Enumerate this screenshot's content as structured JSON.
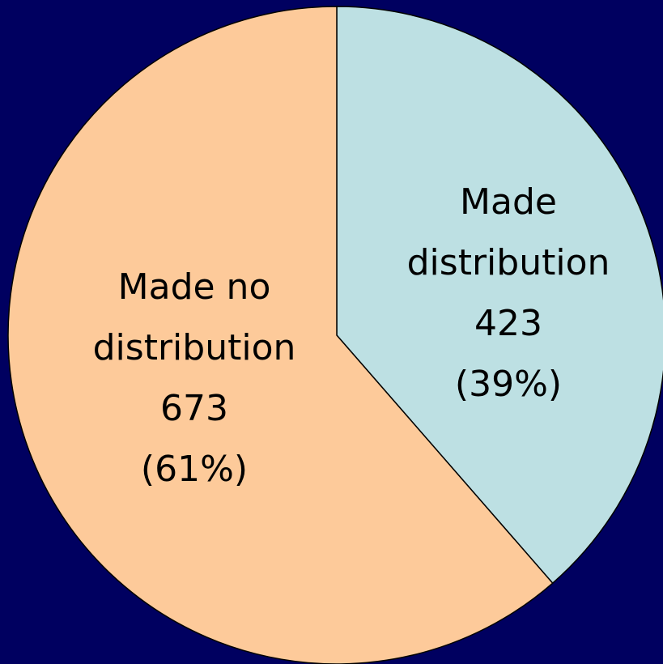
{
  "chart_data": {
    "type": "pie",
    "categories": [
      "Made distribution",
      "Made no distribution"
    ],
    "values": [
      423,
      673
    ],
    "share_labels": [
      "(39%)",
      "(61%)"
    ],
    "colors": [
      "#bde0e3",
      "#fdca9a"
    ]
  }
}
